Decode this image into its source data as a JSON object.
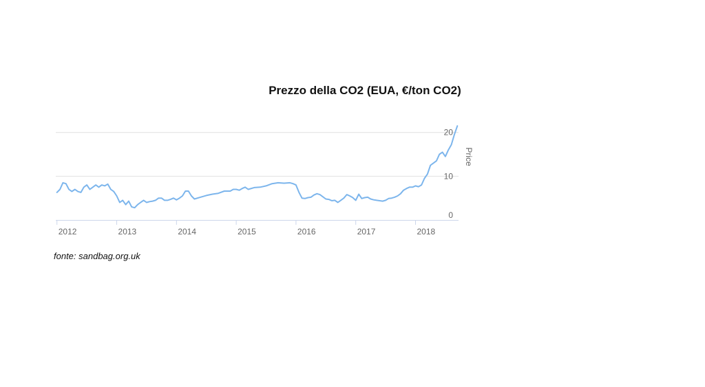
{
  "page": {
    "title": "Prezzo della CO2 (EUA, €/ton CO2)",
    "source": "fonte: sandbag.org.uk"
  },
  "chart_data": {
    "type": "line",
    "title": "Prezzo della CO2 (EUA, €/ton CO2)",
    "xlabel": "",
    "ylabel": "Price",
    "xlim": [
      2011.98,
      2018.72
    ],
    "ylim": [
      0,
      22
    ],
    "x_ticks": [
      "2012",
      "2013",
      "2014",
      "2015",
      "2016",
      "2017",
      "2018"
    ],
    "y_ticks": [
      0,
      10,
      20
    ],
    "grid": true,
    "y_axis_side": "right",
    "color": "#7cb5ec",
    "series": [
      {
        "x": [
          2012.0,
          2012.05,
          2012.1,
          2012.15,
          2012.2,
          2012.25,
          2012.3,
          2012.35,
          2012.4,
          2012.45,
          2012.5,
          2012.55,
          2012.6,
          2012.65,
          2012.7,
          2012.75,
          2012.8,
          2012.85,
          2012.9,
          2012.95,
          2013.0,
          2013.05,
          2013.1,
          2013.15,
          2013.2,
          2013.25,
          2013.3,
          2013.35,
          2013.4,
          2013.45,
          2013.5,
          2013.55,
          2013.6,
          2013.65,
          2013.7,
          2013.75,
          2013.8,
          2013.85,
          2013.9,
          2013.95,
          2014.0,
          2014.05,
          2014.1,
          2014.15,
          2014.2,
          2014.25,
          2014.3,
          2014.4,
          2014.5,
          2014.6,
          2014.7,
          2014.8,
          2014.9,
          2014.95,
          2015.0,
          2015.05,
          2015.1,
          2015.15,
          2015.2,
          2015.3,
          2015.4,
          2015.5,
          2015.6,
          2015.7,
          2015.8,
          2015.9,
          2015.95,
          2016.0,
          2016.05,
          2016.1,
          2016.15,
          2016.2,
          2016.25,
          2016.3,
          2016.35,
          2016.4,
          2016.45,
          2016.5,
          2016.55,
          2016.6,
          2016.65,
          2016.7,
          2016.75,
          2016.8,
          2016.85,
          2016.9,
          2016.95,
          2017.0,
          2017.05,
          2017.1,
          2017.15,
          2017.2,
          2017.25,
          2017.3,
          2017.35,
          2017.4,
          2017.45,
          2017.5,
          2017.55,
          2017.6,
          2017.65,
          2017.7,
          2017.75,
          2017.8,
          2017.85,
          2017.9,
          2017.95,
          2018.0,
          2018.05,
          2018.1,
          2018.15,
          2018.2,
          2018.25,
          2018.3,
          2018.35,
          2018.4,
          2018.45,
          2018.5,
          2018.55,
          2018.6,
          2018.65,
          2018.7
        ],
        "values": [
          6.3,
          7.0,
          8.5,
          8.3,
          7.0,
          6.5,
          7.0,
          6.5,
          6.3,
          7.5,
          8.0,
          7.0,
          7.5,
          8.0,
          7.5,
          8.0,
          7.8,
          8.2,
          7.0,
          6.5,
          5.5,
          4.0,
          4.5,
          3.5,
          4.3,
          3.0,
          2.8,
          3.5,
          4.0,
          4.5,
          4.0,
          4.2,
          4.3,
          4.5,
          5.0,
          5.0,
          4.5,
          4.5,
          4.7,
          5.0,
          4.6,
          5.0,
          5.5,
          6.6,
          6.6,
          5.5,
          4.8,
          5.2,
          5.6,
          5.9,
          6.1,
          6.6,
          6.6,
          7.0,
          7.0,
          6.8,
          7.2,
          7.5,
          7.0,
          7.4,
          7.5,
          7.8,
          8.3,
          8.5,
          8.4,
          8.5,
          8.3,
          8.0,
          6.3,
          5.0,
          4.9,
          5.1,
          5.2,
          5.7,
          6.0,
          5.8,
          5.3,
          4.8,
          4.7,
          4.4,
          4.5,
          4.0,
          4.5,
          5.0,
          5.8,
          5.5,
          5.1,
          4.5,
          5.9,
          4.9,
          5.1,
          5.2,
          4.8,
          4.6,
          4.5,
          4.4,
          4.3,
          4.5,
          4.9,
          5.0,
          5.2,
          5.5,
          6.0,
          6.8,
          7.2,
          7.5,
          7.5,
          7.8,
          7.6,
          8.0,
          9.5,
          10.5,
          12.5,
          13.0,
          13.5,
          15.0,
          15.5,
          14.5,
          16.0,
          17.2,
          19.5,
          21.5
        ]
      }
    ]
  }
}
